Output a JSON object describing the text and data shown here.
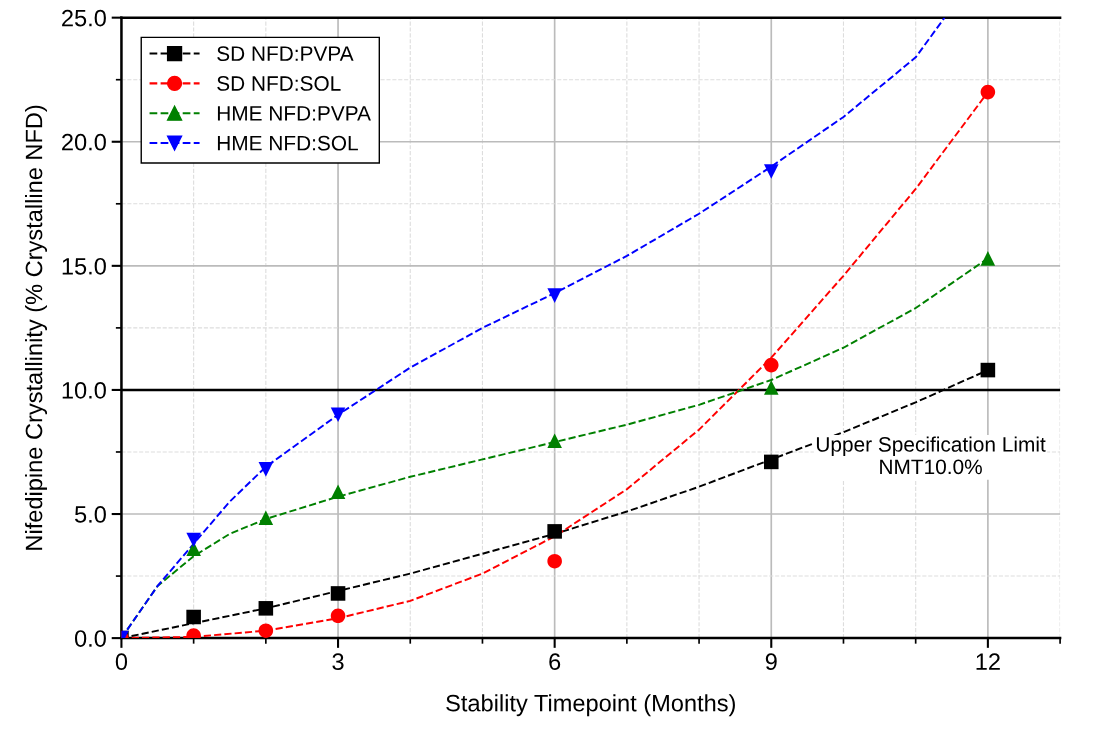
{
  "chart_data": {
    "type": "scatter",
    "xlabel": "Stability Timepoint (Months)",
    "ylabel": "Nifedipine Crystallinity (% Crystalline NFD)",
    "xlim": [
      0,
      13
    ],
    "ylim": [
      0,
      25
    ],
    "xticks": [
      0,
      {
        "value": 1,
        "label": null
      },
      {
        "value": 2,
        "label": null
      },
      3,
      {
        "value": 4,
        "label": null
      },
      {
        "value": 5,
        "label": null
      },
      6,
      {
        "value": 7,
        "label": null
      },
      {
        "value": 8,
        "label": null
      },
      9,
      {
        "value": 10,
        "label": null
      },
      {
        "value": 11,
        "label": null
      },
      12,
      {
        "value": 13,
        "label": null
      }
    ],
    "yticks": [
      {
        "value": 0,
        "label": "0.0"
      },
      {
        "value": 2.5,
        "label": null
      },
      {
        "value": 5,
        "label": "5.0"
      },
      {
        "value": 7.5,
        "label": null
      },
      {
        "value": 10,
        "label": "10.0"
      },
      {
        "value": 12.5,
        "label": null
      },
      {
        "value": 15,
        "label": "15.0"
      },
      {
        "value": 17.5,
        "label": null
      },
      {
        "value": 20,
        "label": "20.0"
      },
      {
        "value": 22.5,
        "label": null
      },
      {
        "value": 25,
        "label": "25.0"
      }
    ],
    "grid": true,
    "legend": "top left",
    "line_style": "dashed",
    "x": [
      0,
      1,
      2,
      3,
      6,
      9,
      12
    ],
    "series": [
      {
        "name": "SD NFD:PVPA",
        "color": "#000000",
        "marker": "square",
        "values": [
          0,
          0.85,
          1.2,
          1.8,
          4.3,
          7.1,
          10.8
        ]
      },
      {
        "name": "SD NFD:SOL",
        "color": "#ff0000",
        "marker": "circle",
        "values": [
          0,
          0.1,
          0.3,
          0.9,
          3.1,
          11.0,
          22.0
        ]
      },
      {
        "name": "HME NFD:PVPA",
        "color": "#008000",
        "marker": "triangle",
        "values": [
          null,
          3.6,
          4.85,
          5.9,
          7.95,
          10.1,
          15.3
        ]
      },
      {
        "name": "HME NFD:SOL",
        "color": "#0000ff",
        "marker": "triangle_down",
        "values": [
          0,
          3.95,
          6.8,
          9.0,
          13.8,
          18.8,
          null
        ]
      },
      {
        "type": "line",
        "color": "#000000",
        "x": [
          0,
          1,
          2,
          3,
          4,
          5,
          6,
          7,
          8,
          9,
          10,
          11,
          12
        ],
        "values": [
          0,
          0.6,
          1.2,
          1.9,
          2.6,
          3.4,
          4.2,
          5.1,
          6.1,
          7.2,
          8.3,
          9.5,
          10.8
        ]
      },
      {
        "type": "line",
        "color": "#ff0000",
        "x": [
          0,
          1,
          2,
          3,
          4,
          5,
          6,
          7,
          8,
          9,
          10,
          11,
          12
        ],
        "values": [
          0,
          0.05,
          0.3,
          0.8,
          1.5,
          2.6,
          4.1,
          6.0,
          8.4,
          11.3,
          14.6,
          18.1,
          22.0
        ]
      },
      {
        "type": "line",
        "color": "#008000",
        "x": [
          0,
          0.5,
          1,
          1.5,
          2,
          3,
          4,
          5,
          6,
          7,
          8,
          9,
          10,
          11,
          12
        ],
        "values": [
          0,
          2.1,
          3.3,
          4.2,
          4.8,
          5.7,
          6.5,
          7.2,
          7.9,
          8.6,
          9.4,
          10.4,
          11.7,
          13.3,
          15.3
        ]
      },
      {
        "type": "line",
        "color": "#0000ff",
        "x": [
          0,
          0.5,
          1,
          1.5,
          2,
          3,
          4,
          5,
          6,
          7,
          8,
          9,
          10,
          11,
          11.4
        ],
        "values": [
          0,
          2.1,
          3.8,
          5.5,
          6.9,
          9.0,
          10.9,
          12.5,
          13.9,
          15.4,
          17.1,
          19.0,
          21.0,
          23.4,
          25.0
        ]
      }
    ],
    "ref_lines": [
      {
        "axis": "y",
        "value": 10,
        "label": "Upper Specification Limit\nNMT10.0%",
        "color": "#000000"
      }
    ]
  }
}
